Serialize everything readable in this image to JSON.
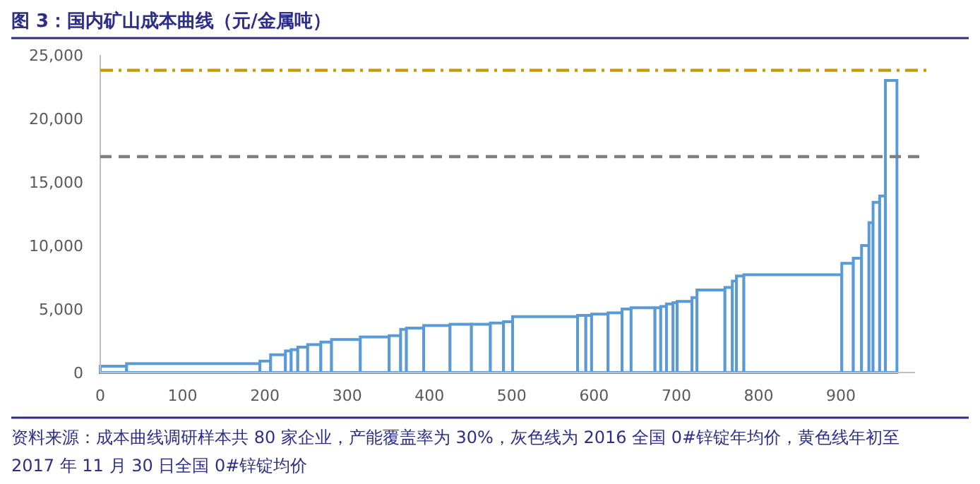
{
  "chart_data": {
    "type": "histogram",
    "title": "图 3：国内矿山成本曲线（元/金属吨）",
    "bins": [
      0,
      32,
      194,
      207,
      225,
      232,
      240,
      252,
      268,
      281,
      316,
      351,
      365,
      372,
      393,
      425,
      451,
      474,
      490,
      501,
      580,
      590,
      597,
      617,
      634,
      645,
      674,
      681,
      688,
      696,
      701,
      719,
      725,
      759,
      768,
      773,
      782,
      901,
      915,
      925,
      934,
      939,
      947,
      954,
      968
    ],
    "values": [
      500,
      700,
      900,
      1400,
      1700,
      1800,
      2000,
      2200,
      2400,
      2600,
      2800,
      2900,
      3400,
      3500,
      3700,
      3800,
      3800,
      3900,
      4000,
      4400,
      4500,
      4500,
      4600,
      4700,
      5000,
      5100,
      5100,
      5200,
      5400,
      5500,
      5600,
      5900,
      6500,
      6700,
      7200,
      7600,
      7700,
      8600,
      9000,
      10000,
      11800,
      13400,
      13900,
      23000
    ],
    "color": "#5b9bd5",
    "xlim": [
      0,
      990
    ],
    "xticks": [
      0,
      100,
      200,
      300,
      400,
      500,
      600,
      700,
      800,
      900
    ],
    "ylim": [
      0,
      25000
    ],
    "yticks": [
      {
        "value": 0,
        "label": "0"
      },
      {
        "value": 5000,
        "label": "5,000"
      },
      {
        "value": 10000,
        "label": "10,000"
      },
      {
        "value": 15000,
        "label": "15,000"
      },
      {
        "value": 20000,
        "label": "20,000"
      },
      {
        "value": 25000,
        "label": "25,000"
      }
    ],
    "ref_lines": [
      {
        "axis": "y",
        "value": 17000,
        "color": "#7f7f7f",
        "line_style": "dashed"
      },
      {
        "axis": "y",
        "value": 23800,
        "color": "#c99a00",
        "line_style": "dashdot"
      }
    ],
    "annotations": [
      "资料来源：成本曲线调研样本共 80 家企业，产能覆盖率为 30%，灰色线为 2016 全国 0#锌锭年均价，黄色线年初至 2017 年 11 月 30 日全国 0#锌锭均价"
    ]
  }
}
